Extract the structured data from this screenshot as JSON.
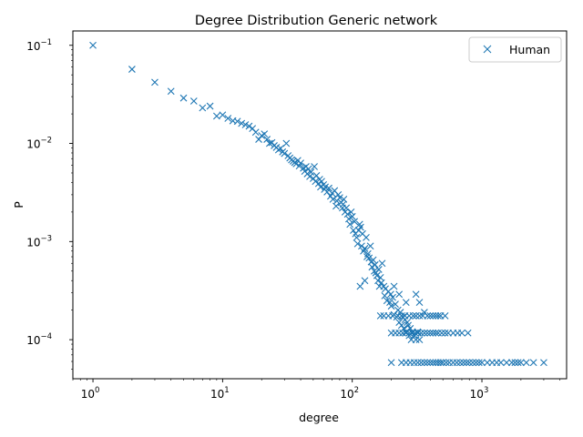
{
  "chart_data": {
    "type": "scatter",
    "title": "Degree Distribution Generic network",
    "xlabel": "degree",
    "ylabel": "P",
    "xscale": "log",
    "yscale": "log",
    "xlim": [
      0.7,
      4500
    ],
    "ylim": [
      4e-05,
      0.14
    ],
    "grid": false,
    "legend": {
      "placement": "top-right",
      "entries": [
        "Human"
      ]
    },
    "x_ticks": [
      {
        "value": 1,
        "base": "10",
        "exp": "0"
      },
      {
        "value": 10,
        "base": "10",
        "exp": "1"
      },
      {
        "value": 100,
        "base": "10",
        "exp": "2"
      },
      {
        "value": 1000,
        "base": "10",
        "exp": "3"
      }
    ],
    "y_ticks": [
      {
        "value": 0.0001,
        "base": "10",
        "exp": "−4"
      },
      {
        "value": 0.001,
        "base": "10",
        "exp": "−3"
      },
      {
        "value": 0.01,
        "base": "10",
        "exp": "−2"
      },
      {
        "value": 0.1,
        "base": "10",
        "exp": "−1"
      }
    ],
    "series": [
      {
        "name": "Human",
        "color": "#1f77b4",
        "marker": "x",
        "points": [
          [
            1,
            0.1
          ],
          [
            2,
            0.057
          ],
          [
            3,
            0.042
          ],
          [
            4,
            0.034
          ],
          [
            5,
            0.029
          ],
          [
            6,
            0.027
          ],
          [
            7,
            0.023
          ],
          [
            8,
            0.024
          ],
          [
            9,
            0.019
          ],
          [
            10,
            0.0195
          ],
          [
            11,
            0.018
          ],
          [
            12,
            0.017
          ],
          [
            13,
            0.0168
          ],
          [
            14,
            0.016
          ],
          [
            15,
            0.0155
          ],
          [
            16,
            0.015
          ],
          [
            17,
            0.0142
          ],
          [
            18,
            0.013
          ],
          [
            19,
            0.011
          ],
          [
            20,
            0.012
          ],
          [
            21,
            0.0125
          ],
          [
            22,
            0.011
          ],
          [
            23,
            0.01
          ],
          [
            24,
            0.0102
          ],
          [
            25,
            0.0095
          ],
          [
            26,
            0.0091
          ],
          [
            27,
            0.0086
          ],
          [
            28,
            0.0089
          ],
          [
            29,
            0.0082
          ],
          [
            30,
            0.0079
          ],
          [
            31,
            0.01
          ],
          [
            32,
            0.0075
          ],
          [
            33,
            0.0071
          ],
          [
            34,
            0.0068
          ],
          [
            35,
            0.0066
          ],
          [
            36,
            0.0064
          ],
          [
            37,
            0.0062
          ],
          [
            38,
            0.0067
          ],
          [
            39,
            0.0059
          ],
          [
            40,
            0.0063
          ],
          [
            42,
            0.0056
          ],
          [
            43,
            0.0052
          ],
          [
            44,
            0.0058
          ],
          [
            45,
            0.0049
          ],
          [
            46,
            0.0055
          ],
          [
            47,
            0.0046
          ],
          [
            48,
            0.0051
          ],
          [
            50,
            0.0044
          ],
          [
            51,
            0.0058
          ],
          [
            52,
            0.0041
          ],
          [
            53,
            0.0047
          ],
          [
            55,
            0.0039
          ],
          [
            56,
            0.0043
          ],
          [
            57,
            0.0036
          ],
          [
            58,
            0.0041
          ],
          [
            60,
            0.0038
          ],
          [
            61,
            0.0034
          ],
          [
            62,
            0.0036
          ],
          [
            64,
            0.0032
          ],
          [
            66,
            0.0035
          ],
          [
            68,
            0.0029
          ],
          [
            70,
            0.0031
          ],
          [
            71,
            0.0027
          ],
          [
            73,
            0.0033
          ],
          [
            75,
            0.0023
          ],
          [
            76,
            0.0026
          ],
          [
            78,
            0.003
          ],
          [
            80,
            0.0028
          ],
          [
            82,
            0.0025
          ],
          [
            84,
            0.0022
          ],
          [
            85,
            0.0024
          ],
          [
            86,
            0.0027
          ],
          [
            88,
            0.002
          ],
          [
            90,
            0.0022
          ],
          [
            92,
            0.0019
          ],
          [
            94,
            0.0017
          ],
          [
            96,
            0.0015
          ],
          [
            98,
            0.002
          ],
          [
            100,
            0.0018
          ],
          [
            102,
            0.0013
          ],
          [
            104,
            0.0016
          ],
          [
            106,
            0.0012
          ],
          [
            108,
            0.0011
          ],
          [
            110,
            0.00095
          ],
          [
            112,
            0.0013
          ],
          [
            114,
            0.0015
          ],
          [
            116,
            0.0014
          ],
          [
            118,
            0.0009
          ],
          [
            120,
            0.0012
          ],
          [
            122,
            0.0008
          ],
          [
            125,
            0.00085
          ],
          [
            128,
            0.0011
          ],
          [
            130,
            0.0007
          ],
          [
            132,
            0.00075
          ],
          [
            135,
            0.00068
          ],
          [
            138,
            0.0009
          ],
          [
            140,
            0.00062
          ],
          [
            142,
            0.00055
          ],
          [
            145,
            0.00065
          ],
          [
            148,
            0.0005
          ],
          [
            150,
            0.00058
          ],
          [
            152,
            0.00048
          ],
          [
            155,
            0.00045
          ],
          [
            158,
            0.0004
          ],
          [
            160,
            0.00052
          ],
          [
            162,
            0.00035
          ],
          [
            165,
            0.00043
          ],
          [
            168,
            0.00038
          ],
          [
            170,
            0.0006
          ],
          [
            175,
            0.00035
          ],
          [
            178,
            0.00028
          ],
          [
            180,
            0.00033
          ],
          [
            185,
            0.00025
          ],
          [
            190,
            0.00031
          ],
          [
            195,
            0.00024
          ],
          [
            198,
            0.00029
          ],
          [
            200,
            0.00022
          ],
          [
            205,
            0.00027
          ],
          [
            210,
            0.00018
          ],
          [
            215,
            0.00023
          ],
          [
            220,
            0.00017
          ],
          [
            225,
            0.0002
          ],
          [
            230,
            0.00015
          ],
          [
            235,
            0.00019
          ],
          [
            240,
            0.00014
          ],
          [
            245,
            0.00017
          ],
          [
            250,
            0.00013
          ],
          [
            255,
            0.00016
          ],
          [
            260,
            0.00012
          ],
          [
            265,
            0.00015
          ],
          [
            270,
            0.00014
          ],
          [
            275,
            0.00011
          ],
          [
            280,
            0.00013
          ],
          [
            285,
            0.0001
          ],
          [
            290,
            0.00012
          ],
          [
            300,
            0.00011
          ],
          [
            310,
            0.0001
          ],
          [
            320,
            0.00012
          ],
          [
            330,
            0.0001
          ],
          [
            115,
            0.00035
          ],
          [
            125,
            0.0004
          ],
          [
            210,
            0.00035
          ],
          [
            230,
            0.00029
          ],
          [
            260,
            0.00024
          ],
          [
            310,
            0.00029
          ],
          [
            330,
            0.00024
          ],
          [
            360,
            0.00019
          ],
          [
            380,
            0.000175
          ],
          [
            400,
            0.000175
          ],
          [
            420,
            0.000175
          ],
          [
            440,
            0.000175
          ],
          [
            460,
            0.000175
          ],
          [
            480,
            0.000175
          ],
          [
            520,
            0.000175
          ],
          [
            350,
            0.000175
          ],
          [
            330,
            0.000175
          ],
          [
            310,
            0.000175
          ],
          [
            295,
            0.000175
          ],
          [
            275,
            0.000175
          ],
          [
            255,
            0.000175
          ],
          [
            240,
            0.000175
          ],
          [
            225,
            0.000175
          ],
          [
            205,
            0.000175
          ],
          [
            190,
            0.000175
          ],
          [
            175,
            0.000175
          ],
          [
            165,
            0.000175
          ],
          [
            200,
            0.000117
          ],
          [
            215,
            0.000117
          ],
          [
            230,
            0.000117
          ],
          [
            245,
            0.000117
          ],
          [
            260,
            0.000117
          ],
          [
            275,
            0.000117
          ],
          [
            290,
            0.000117
          ],
          [
            305,
            0.000117
          ],
          [
            320,
            0.000117
          ],
          [
            340,
            0.000117
          ],
          [
            360,
            0.000117
          ],
          [
            380,
            0.000117
          ],
          [
            400,
            0.000117
          ],
          [
            420,
            0.000117
          ],
          [
            440,
            0.000117
          ],
          [
            460,
            0.000117
          ],
          [
            490,
            0.000117
          ],
          [
            520,
            0.000117
          ],
          [
            550,
            0.000117
          ],
          [
            600,
            0.000117
          ],
          [
            650,
            0.000117
          ],
          [
            700,
            0.000117
          ],
          [
            780,
            0.000117
          ],
          [
            200,
            5.85e-05
          ],
          [
            240,
            5.85e-05
          ],
          [
            260,
            5.85e-05
          ],
          [
            280,
            5.85e-05
          ],
          [
            300,
            5.85e-05
          ],
          [
            320,
            5.85e-05
          ],
          [
            340,
            5.85e-05
          ],
          [
            360,
            5.85e-05
          ],
          [
            380,
            5.85e-05
          ],
          [
            400,
            5.85e-05
          ],
          [
            420,
            5.85e-05
          ],
          [
            440,
            5.85e-05
          ],
          [
            460,
            5.85e-05
          ],
          [
            480,
            5.85e-05
          ],
          [
            500,
            5.85e-05
          ],
          [
            530,
            5.85e-05
          ],
          [
            560,
            5.85e-05
          ],
          [
            600,
            5.85e-05
          ],
          [
            640,
            5.85e-05
          ],
          [
            680,
            5.85e-05
          ],
          [
            720,
            5.85e-05
          ],
          [
            760,
            5.85e-05
          ],
          [
            800,
            5.85e-05
          ],
          [
            850,
            5.85e-05
          ],
          [
            900,
            5.85e-05
          ],
          [
            950,
            5.85e-05
          ],
          [
            1000,
            5.85e-05
          ],
          [
            1100,
            5.85e-05
          ],
          [
            1200,
            5.85e-05
          ],
          [
            1300,
            5.85e-05
          ],
          [
            1400,
            5.85e-05
          ],
          [
            1550,
            5.85e-05
          ],
          [
            1700,
            5.85e-05
          ],
          [
            1800,
            5.85e-05
          ],
          [
            1900,
            5.85e-05
          ],
          [
            2000,
            5.85e-05
          ],
          [
            2200,
            5.85e-05
          ],
          [
            2500,
            5.85e-05
          ],
          [
            3000,
            5.85e-05
          ]
        ]
      }
    ]
  }
}
